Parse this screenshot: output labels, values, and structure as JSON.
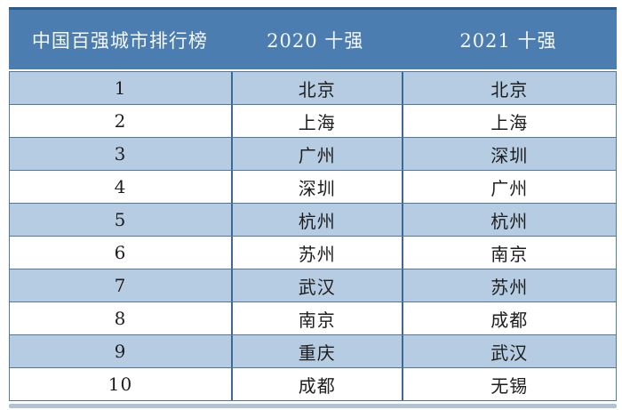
{
  "chart_data": {
    "type": "table",
    "title": "中国百强城市排行榜",
    "columns": [
      "中国百强城市排行榜",
      "2020 十强",
      "2021 十强"
    ],
    "rows": [
      [
        "1",
        "北京",
        "北京"
      ],
      [
        "2",
        "上海",
        "上海"
      ],
      [
        "3",
        "广州",
        "深圳"
      ],
      [
        "4",
        "深圳",
        "广州"
      ],
      [
        "5",
        "杭州",
        "杭州"
      ],
      [
        "6",
        "苏州",
        "南京"
      ],
      [
        "7",
        "武汉",
        "苏州"
      ],
      [
        "8",
        "南京",
        "成都"
      ],
      [
        "9",
        "重庆",
        "武汉"
      ],
      [
        "10",
        "成都",
        "无锡"
      ]
    ],
    "layout": {
      "row_striping": "odd rows light blue, even rows white",
      "grid": true,
      "header_position": "top"
    }
  },
  "colors": {
    "header_bg": "#4C7DB1",
    "header_top_border": "#2B5A8C",
    "header_text": "#F5F8FB",
    "row_alt_bg": "#B6CCE3",
    "row_bg": "#FFFFFF",
    "grid_line": "#53769C",
    "column_divider": "#3F6792",
    "body_text": "#1E1E1E",
    "bottom_strip": "#B4C3D4"
  }
}
